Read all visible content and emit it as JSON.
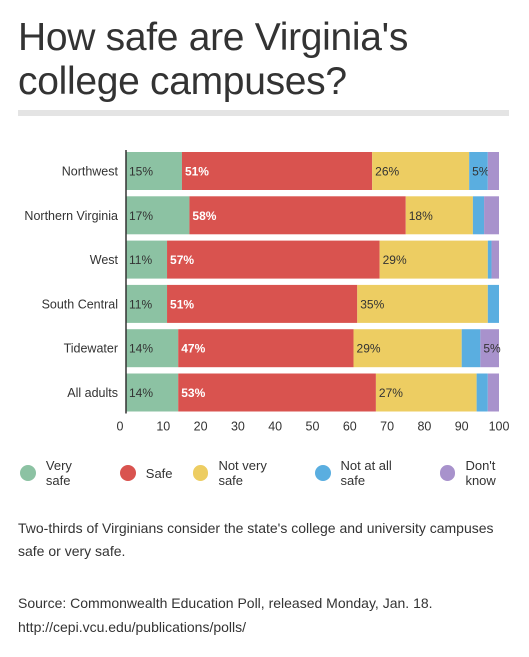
{
  "chart_data": {
    "type": "bar",
    "orientation": "horizontal",
    "stacked": true,
    "title": "How safe are Virginia's college campuses?",
    "xlabel": "",
    "ylabel": "",
    "xlim": [
      0,
      100
    ],
    "x_ticks": [
      0,
      10,
      20,
      30,
      40,
      50,
      60,
      70,
      80,
      90,
      100
    ],
    "categories": [
      "Northwest",
      "Northern Virginia",
      "West",
      "South Central",
      "Tidewater",
      "All adults"
    ],
    "series": [
      {
        "name": "Very safe",
        "color": "#8cc2a3",
        "values": [
          15,
          17,
          11,
          11,
          14,
          14
        ],
        "labels": [
          "15%",
          "17%",
          "11%",
          "11%",
          "14%",
          "14%"
        ]
      },
      {
        "name": "Safe",
        "color": "#d9534f",
        "values": [
          51,
          58,
          57,
          51,
          47,
          53
        ],
        "labels": [
          "51%",
          "58%",
          "57%",
          "51%",
          "47%",
          "53%"
        ]
      },
      {
        "name": "Not very safe",
        "color": "#edcd62",
        "values": [
          26,
          18,
          29,
          35,
          29,
          27
        ],
        "labels": [
          "26%",
          "18%",
          "29%",
          "35%",
          "29%",
          "27%"
        ]
      },
      {
        "name": "Not at all safe",
        "color": "#5aaee0",
        "values": [
          5,
          3,
          1,
          3,
          5,
          3
        ],
        "labels": [
          "5%",
          "",
          "",
          "",
          "",
          ""
        ]
      },
      {
        "name": "Don't know",
        "color": "#a892cc",
        "values": [
          3,
          4,
          2,
          0,
          5,
          3
        ],
        "labels": [
          "",
          "",
          "",
          "",
          "5%",
          ""
        ]
      }
    ],
    "legend_position": "bottom",
    "grid": false
  },
  "note": "Two-thirds of Virginians consider the state's college and university campuses safe or very safe.",
  "source_line1": "Source:  Commonwealth Education Poll, released Monday, Jan. 18.",
  "source_line2": "http://cepi.vcu.edu/publications/polls/"
}
